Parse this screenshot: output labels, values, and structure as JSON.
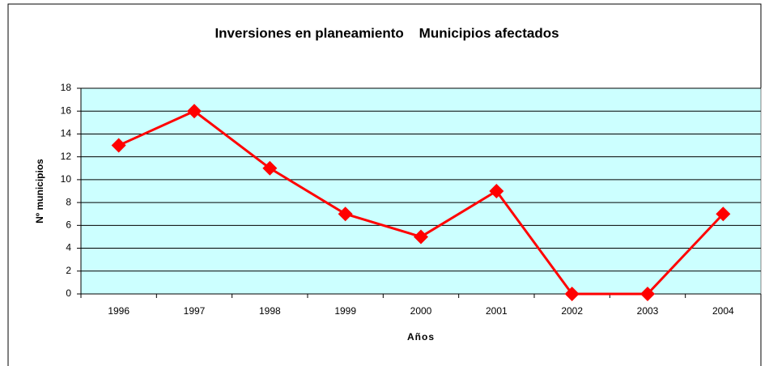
{
  "chart_data": {
    "type": "line",
    "title": "Inversiones en planeamiento    Municipios afectados",
    "x_label": "Años",
    "y_label": "Nº municipios",
    "categories": [
      "1996",
      "1997",
      "1998",
      "1999",
      "2000",
      "2001",
      "2002",
      "2003",
      "2004"
    ],
    "series": [
      {
        "name": "Municipios afectados",
        "color": "#ff0000",
        "values": [
          13,
          16,
          11,
          7,
          5,
          9,
          0,
          0,
          7
        ]
      }
    ],
    "ylim": [
      0,
      18
    ],
    "yticks": [
      0,
      2,
      4,
      6,
      8,
      10,
      12,
      14,
      16,
      18
    ],
    "grid": true,
    "plot_background": "#ccffff"
  }
}
